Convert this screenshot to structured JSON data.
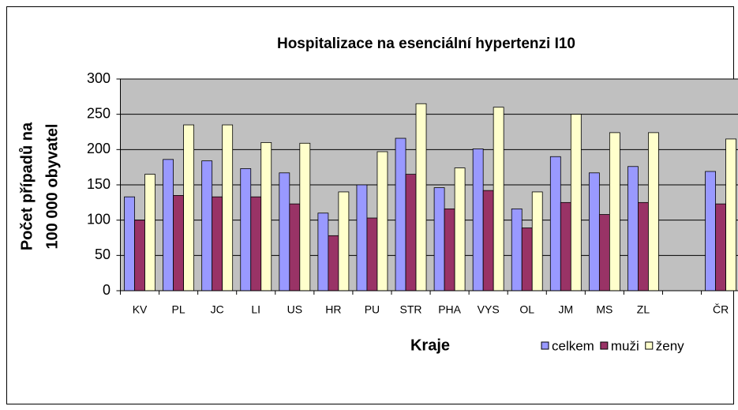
{
  "chart_data": {
    "type": "bar",
    "title": "Hospitalizace na esenciální hypertenzi   I10",
    "ylabel": [
      "Počet   případů na",
      "100 000 obyvatel"
    ],
    "xlabel": "Kraje",
    "categories": [
      "KV",
      "PL",
      "JC",
      "LI",
      "US",
      "HR",
      "PU",
      "STR",
      "PHA",
      "VYS",
      "OL",
      "JM",
      "MS",
      "ZL",
      null,
      "ČR"
    ],
    "series": [
      {
        "name": "celkem",
        "color": "#9999ff",
        "values": [
          133,
          186,
          184,
          173,
          167,
          110,
          150,
          216,
          146,
          201,
          116,
          190,
          167,
          176,
          null,
          169
        ]
      },
      {
        "name": "muži",
        "color": "#993366",
        "values": [
          100,
          135,
          133,
          133,
          123,
          78,
          103,
          165,
          116,
          142,
          89,
          125,
          108,
          125,
          null,
          123
        ]
      },
      {
        "name": "ženy",
        "color": "#ffffcc",
        "values": [
          165,
          235,
          235,
          210,
          209,
          140,
          197,
          265,
          174,
          260,
          140,
          250,
          224,
          224,
          null,
          215
        ]
      }
    ],
    "ylim": [
      0,
      300
    ],
    "yticks": [
      0,
      50,
      100,
      150,
      200,
      250,
      300
    ],
    "grid": true,
    "legend": "bottom-right"
  }
}
